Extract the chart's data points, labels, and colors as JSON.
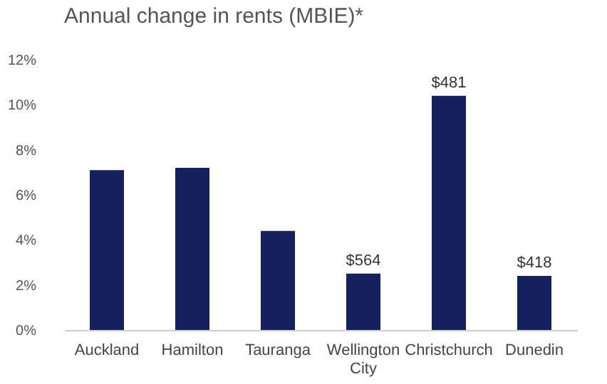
{
  "chart_data": {
    "type": "bar",
    "title": "Annual change in rents (MBIE)*",
    "categories": [
      "Auckland",
      "Hamilton",
      "Tauranga",
      "Wellington City",
      "Christchurch",
      "Dunedin"
    ],
    "values": [
      7.1,
      7.2,
      4.4,
      2.5,
      10.4,
      2.4
    ],
    "annotations": [
      {
        "text": "$564",
        "x": "Wellington City",
        "y": 2.5
      },
      {
        "text": "$481",
        "x": "Christchurch",
        "y": 10.4
      },
      {
        "text": "$418",
        "x": "Dunedin",
        "y": 2.4
      }
    ],
    "color": "#14215e",
    "ylim": [
      0,
      12
    ],
    "yticks": [
      {
        "value": 0,
        "label": "0%"
      },
      {
        "value": 2,
        "label": "2%"
      },
      {
        "value": 4,
        "label": "4%"
      },
      {
        "value": 6,
        "label": "6%"
      },
      {
        "value": 8,
        "label": "8%"
      },
      {
        "value": 10,
        "label": "10%"
      },
      {
        "value": 12,
        "label": "12%"
      }
    ],
    "grid": false
  }
}
